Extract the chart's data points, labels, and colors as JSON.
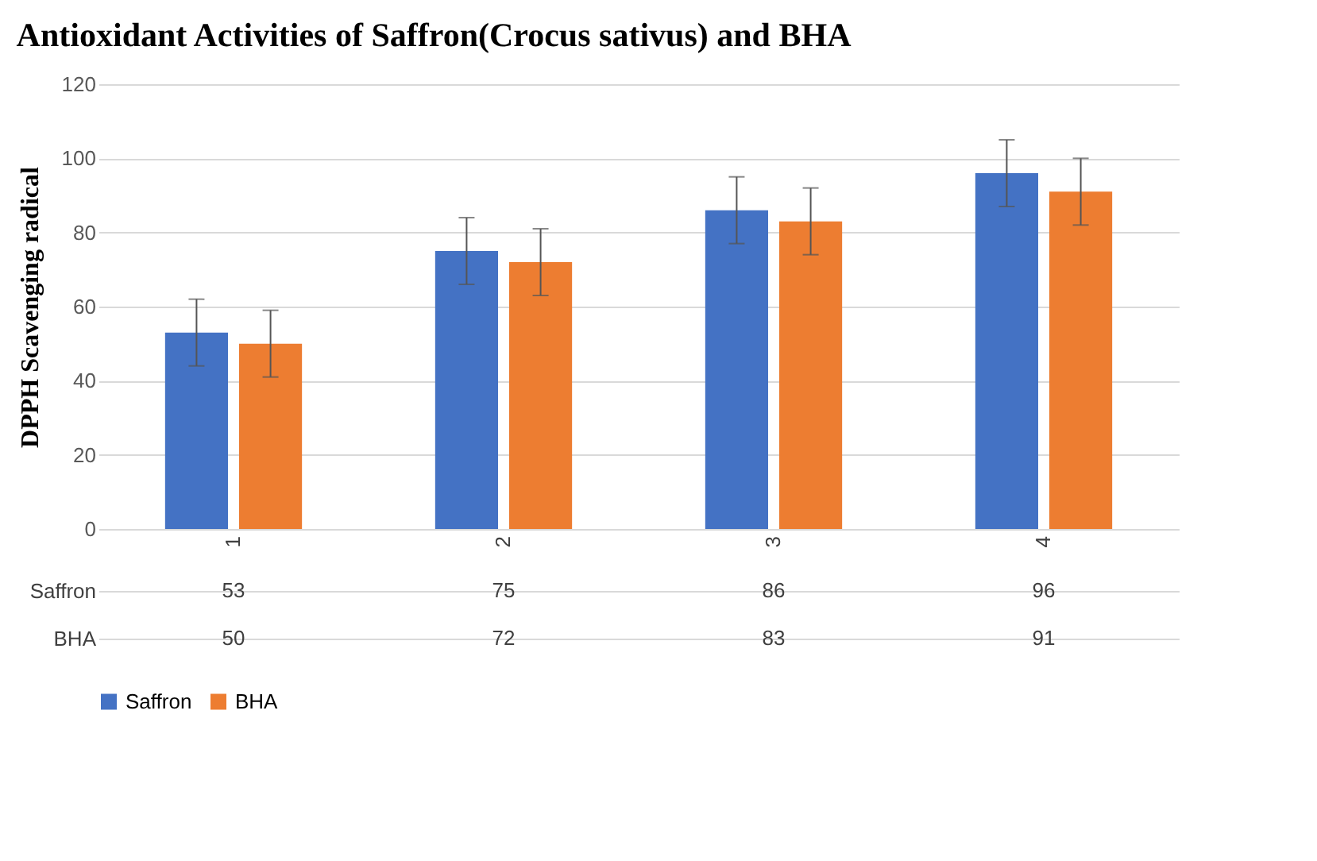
{
  "chart_data": {
    "type": "bar",
    "title": "Antioxidant Activities of Saffron(Crocus sativus) and BHA",
    "ylabel": "DPPH Scavenging radical",
    "categories": [
      "1",
      "2",
      "3",
      "4"
    ],
    "series": [
      {
        "name": "Saffron",
        "color": "#4472c4",
        "values": [
          53,
          75,
          86,
          96
        ],
        "errors": [
          9,
          9,
          9,
          9
        ]
      },
      {
        "name": "BHA",
        "color": "#ed7d31",
        "values": [
          50,
          72,
          83,
          91
        ],
        "errors": [
          9,
          9,
          9,
          9
        ]
      }
    ],
    "ylim": [
      0,
      120
    ],
    "yticks": [
      0,
      20,
      40,
      60,
      80,
      100,
      120
    ],
    "grid": "y",
    "legend": "bottom",
    "data_labels": true
  }
}
